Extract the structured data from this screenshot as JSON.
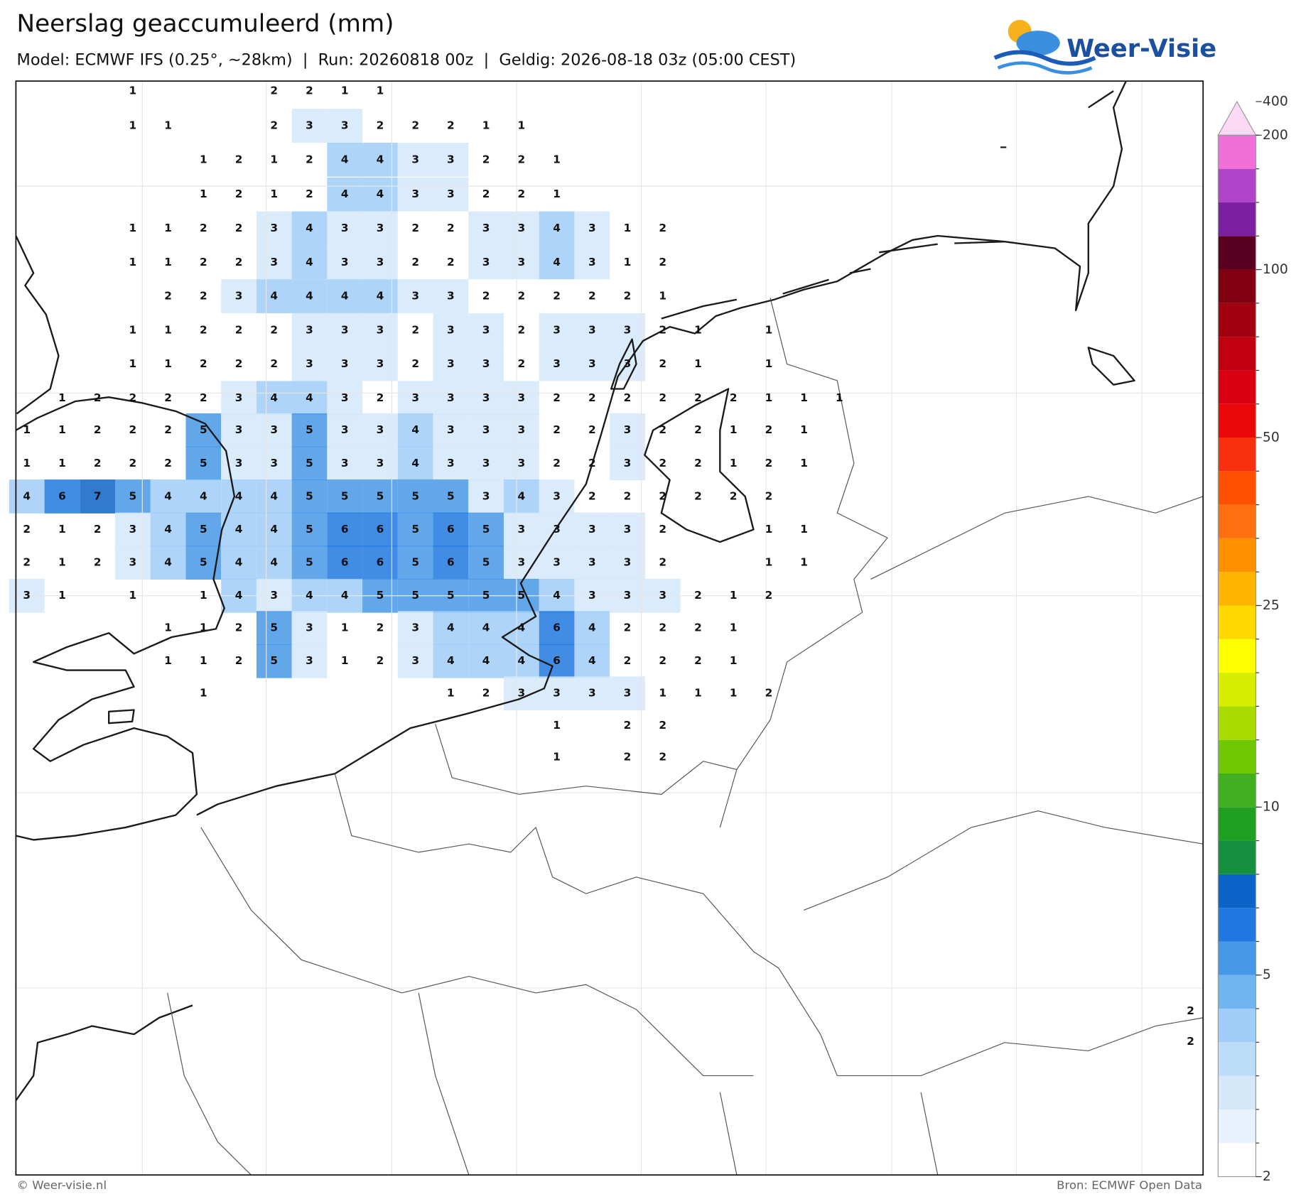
{
  "header": {
    "title": "Neerslag geaccumuleerd (mm)",
    "subtitle": "Model: ECMWF IFS (0.25°, ~28km)  |  Run: 20260818 00z  |  Geldig: 2026-08-18 03z (05:00 CEST)",
    "logo": "Weer-Visie"
  },
  "map": {
    "grid": [
      [
        null,
        null,
        null,
        1,
        null,
        null,
        null,
        2,
        2,
        1,
        1,
        null,
        null,
        null,
        null,
        null,
        null,
        null,
        null,
        null,
        null,
        null,
        null,
        null
      ],
      [
        null,
        null,
        null,
        1,
        1,
        null,
        null,
        2,
        3,
        3,
        2,
        2,
        2,
        1,
        1,
        null,
        null,
        null,
        null,
        null,
        null,
        null,
        null,
        null
      ],
      [
        null,
        null,
        null,
        null,
        null,
        1,
        2,
        1,
        2,
        4,
        4,
        3,
        3,
        2,
        2,
        1,
        null,
        null,
        null,
        null,
        null,
        null,
        null,
        null
      ],
      [
        null,
        null,
        null,
        null,
        null,
        1,
        2,
        1,
        2,
        4,
        4,
        3,
        3,
        2,
        2,
        1,
        null,
        null,
        null,
        null,
        null,
        null,
        null,
        null
      ],
      [
        null,
        null,
        null,
        1,
        1,
        2,
        2,
        3,
        4,
        3,
        3,
        2,
        2,
        3,
        3,
        4,
        3,
        1,
        2,
        null,
        null,
        null,
        null,
        null
      ],
      [
        null,
        null,
        null,
        1,
        1,
        2,
        2,
        3,
        4,
        3,
        3,
        2,
        2,
        3,
        3,
        4,
        3,
        1,
        2,
        null,
        null,
        null,
        null,
        null
      ],
      [
        null,
        null,
        null,
        null,
        2,
        2,
        3,
        4,
        4,
        4,
        4,
        3,
        3,
        2,
        2,
        2,
        2,
        2,
        1,
        null,
        null,
        null,
        null,
        null
      ],
      [
        null,
        null,
        null,
        1,
        1,
        2,
        2,
        2,
        3,
        3,
        3,
        2,
        3,
        3,
        2,
        3,
        3,
        3,
        2,
        1,
        null,
        1,
        null,
        null
      ],
      [
        null,
        null,
        null,
        1,
        1,
        2,
        2,
        2,
        3,
        3,
        3,
        2,
        3,
        3,
        2,
        3,
        3,
        3,
        2,
        1,
        null,
        1,
        null,
        null
      ],
      [
        null,
        1,
        2,
        2,
        2,
        2,
        3,
        4,
        4,
        3,
        2,
        3,
        3,
        3,
        3,
        2,
        2,
        2,
        2,
        2,
        2,
        1,
        1,
        1
      ],
      [
        1,
        1,
        2,
        2,
        2,
        5,
        3,
        3,
        5,
        3,
        3,
        4,
        3,
        3,
        3,
        2,
        2,
        3,
        2,
        2,
        1,
        2,
        1,
        null
      ],
      [
        1,
        1,
        2,
        2,
        2,
        5,
        3,
        3,
        5,
        3,
        3,
        4,
        3,
        3,
        3,
        2,
        2,
        3,
        2,
        2,
        1,
        2,
        1,
        null
      ],
      [
        4,
        6,
        7,
        5,
        4,
        4,
        4,
        4,
        5,
        5,
        5,
        5,
        5,
        3,
        4,
        3,
        2,
        2,
        2,
        2,
        2,
        2,
        null,
        null
      ],
      [
        2,
        1,
        2,
        3,
        4,
        5,
        4,
        4,
        5,
        6,
        6,
        5,
        6,
        5,
        3,
        3,
        3,
        3,
        2,
        null,
        null,
        1,
        1,
        null
      ],
      [
        2,
        1,
        2,
        3,
        4,
        5,
        4,
        4,
        5,
        6,
        6,
        5,
        6,
        5,
        3,
        3,
        3,
        3,
        2,
        null,
        null,
        1,
        1,
        null
      ],
      [
        3,
        1,
        null,
        1,
        null,
        1,
        4,
        3,
        4,
        4,
        5,
        5,
        5,
        5,
        5,
        4,
        3,
        3,
        3,
        2,
        1,
        2,
        null,
        null
      ],
      [
        null,
        null,
        null,
        null,
        1,
        1,
        2,
        5,
        3,
        1,
        2,
        3,
        4,
        4,
        4,
        6,
        4,
        2,
        2,
        2,
        1,
        null,
        null,
        null
      ],
      [
        null,
        null,
        null,
        null,
        1,
        1,
        2,
        5,
        3,
        1,
        2,
        3,
        4,
        4,
        4,
        6,
        4,
        2,
        2,
        2,
        1,
        null,
        null,
        null
      ],
      [
        null,
        null,
        null,
        null,
        null,
        1,
        null,
        null,
        null,
        null,
        null,
        null,
        1,
        2,
        3,
        3,
        3,
        3,
        1,
        1,
        1,
        2,
        null,
        null
      ],
      [
        null,
        null,
        null,
        null,
        null,
        null,
        null,
        null,
        null,
        null,
        null,
        null,
        null,
        null,
        null,
        1,
        null,
        2,
        2,
        null,
        null,
        null,
        null,
        null
      ],
      [
        null,
        null,
        null,
        null,
        null,
        null,
        null,
        null,
        null,
        null,
        null,
        null,
        null,
        null,
        null,
        1,
        null,
        2,
        2,
        null,
        null,
        null,
        null,
        null
      ]
    ],
    "edge_labels": [
      2,
      2
    ]
  },
  "colorbar": {
    "levels": [
      2,
      2.5,
      3,
      3.5,
      4,
      4.5,
      5,
      6,
      7,
      8,
      9,
      10,
      12,
      14,
      16,
      18,
      20,
      25,
      30,
      35,
      40,
      45,
      50,
      60,
      70,
      80,
      90,
      100,
      125,
      150,
      175,
      200,
      400
    ],
    "colors": [
      "#ffffff",
      "#e8f2fc",
      "#d4e8fa",
      "#bcdcf8",
      "#a0cef8",
      "#70b4f0",
      "#4898e8",
      "#2078e0",
      "#0c64c8",
      "#149040",
      "#20a020",
      "#40b020",
      "#70c800",
      "#a8dc00",
      "#d8ee00",
      "#ffff00",
      "#ffd800",
      "#ffb400",
      "#ff9000",
      "#ff7010",
      "#ff5000",
      "#f83010",
      "#e80808",
      "#d80010",
      "#c00010",
      "#a00010",
      "#800010",
      "#5a0020",
      "#7a20a0",
      "#b044c8",
      "#f070d8"
    ],
    "extend_color": "#fcd9f4",
    "ticks": [
      2,
      5,
      10,
      25,
      50,
      100,
      200,
      400
    ]
  },
  "footer": {
    "credit": "© Weer-visie.nl",
    "source": "Bron: ECMWF Open Data"
  }
}
